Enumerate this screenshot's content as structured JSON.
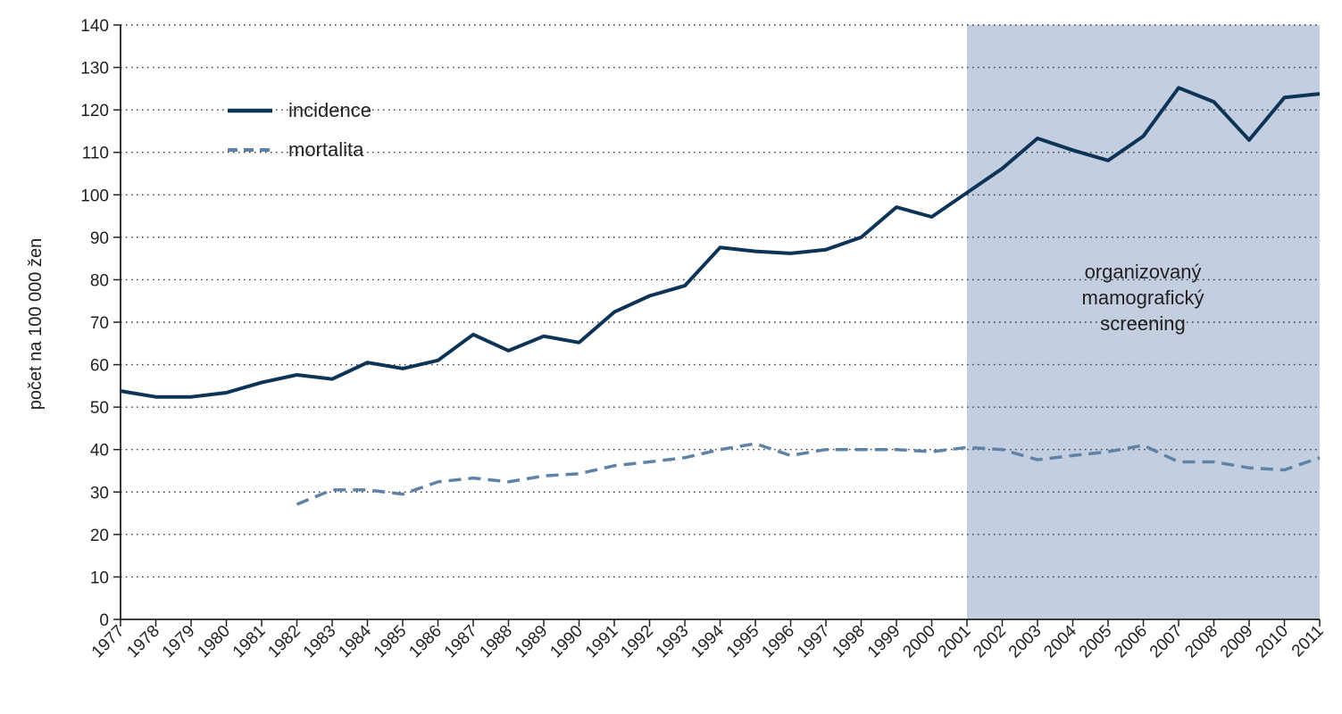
{
  "chart_data": {
    "type": "line",
    "xlabel": "",
    "ylabel": "počet na 100 000 žen",
    "ylim": [
      0,
      140
    ],
    "yticks": [
      0,
      10,
      20,
      30,
      40,
      50,
      60,
      70,
      80,
      90,
      100,
      110,
      120,
      130,
      140
    ],
    "grid": true,
    "legend_position": "top-left",
    "x": [
      "1977",
      "1978",
      "1979",
      "1980",
      "1981",
      "1982",
      "1983",
      "1984",
      "1985",
      "1986",
      "1987",
      "1988",
      "1989",
      "1990",
      "1991",
      "1992",
      "1993",
      "1994",
      "1995",
      "1996",
      "1997",
      "1998",
      "1999",
      "2000",
      "2001",
      "2002",
      "2003",
      "2004",
      "2005",
      "2006",
      "2007",
      "2008",
      "2009",
      "2010",
      "2011"
    ],
    "series": [
      {
        "name": "incidence",
        "style": "solid",
        "color": "#0d3457",
        "values": [
          53.8,
          52.4,
          52.4,
          53.4,
          55.8,
          57.6,
          56.6,
          60.5,
          59.1,
          61.0,
          67.1,
          63.3,
          66.7,
          65.2,
          72.4,
          76.2,
          78.6,
          87.6,
          86.7,
          86.2,
          87.1,
          90.0,
          97.1,
          94.8,
          100.5,
          106.2,
          113.3,
          110.5,
          108.1,
          113.8,
          125.2,
          121.9,
          112.9,
          122.9,
          123.8
        ]
      },
      {
        "name": "mortalita",
        "style": "dashed",
        "color": "#5f83a6",
        "values": [
          null,
          null,
          null,
          null,
          null,
          27.1,
          30.5,
          30.5,
          29.5,
          32.4,
          33.3,
          32.4,
          33.8,
          34.3,
          36.2,
          37.1,
          38.1,
          40.0,
          41.4,
          38.6,
          40.0,
          40.0,
          40.0,
          39.5,
          40.5,
          40.0,
          37.6,
          38.6,
          39.5,
          41.0,
          37.1,
          37.1,
          35.7,
          35.2,
          38.1
        ]
      }
    ],
    "shaded_region": {
      "from": "2001",
      "to": "2011",
      "color": "#c3cfe0",
      "label_lines": [
        "organizovaný",
        "mamografický",
        "screening"
      ]
    }
  }
}
